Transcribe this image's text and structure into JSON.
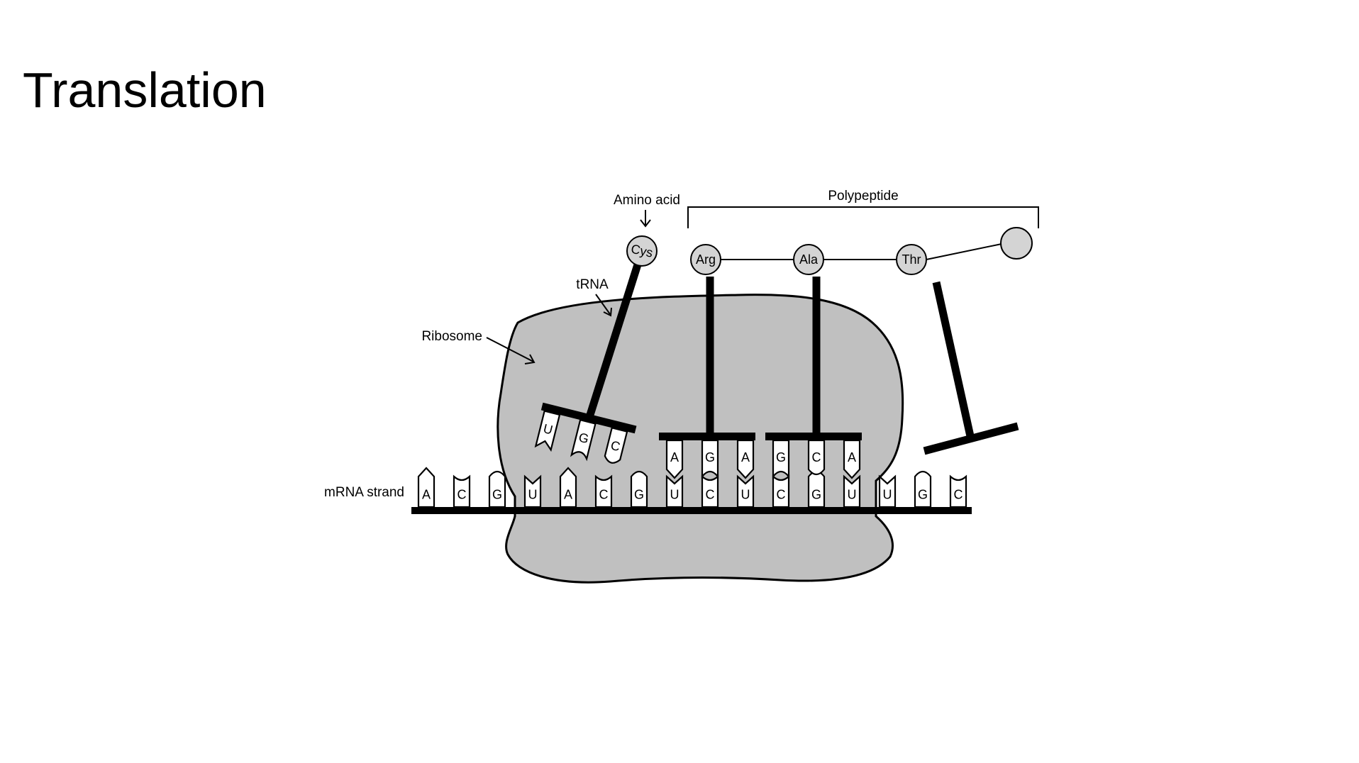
{
  "title": "Translation",
  "labels": {
    "amino_acid": "Amino acid",
    "polypeptide": "Polypeptide",
    "trna": "tRNA",
    "ribosome": "Ribosome",
    "mrna_strand": "mRNA strand"
  },
  "mrna_bases": [
    "A",
    "C",
    "G",
    "U",
    "A",
    "C",
    "G",
    "U",
    "C",
    "U",
    "C",
    "G",
    "U",
    "U",
    "G",
    "C"
  ],
  "trnas": [
    {
      "amino_acid": "Cys",
      "anticodon": [
        "U",
        "G",
        "C"
      ]
    },
    {
      "amino_acid": "Arg",
      "anticodon": [
        "A",
        "G",
        "A"
      ]
    },
    {
      "amino_acid": "Ala",
      "anticodon": [
        "G",
        "C",
        "A"
      ]
    }
  ],
  "chain_amino_acids": [
    "Thr",
    ""
  ],
  "colors": {
    "ribosome": "#c0c0c0",
    "amino_acid": "#d4d4d4",
    "stroke": "#000000"
  }
}
